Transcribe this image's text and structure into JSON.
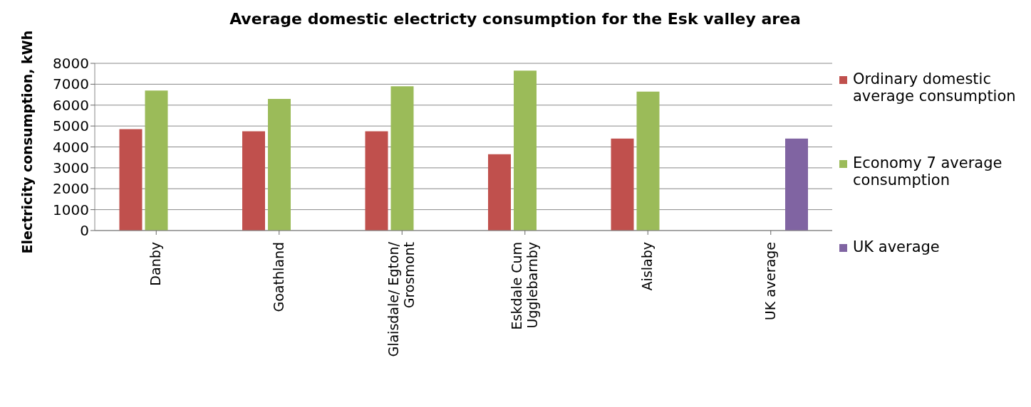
{
  "chart_data": {
    "type": "bar",
    "title": "Average domestic electricty consumption for the Esk valley area",
    "ylabel": "Electricity consumption, kWh",
    "categories": [
      "Danby",
      "Goathland",
      "Glaisdale/ Egton/ Grosmont",
      "Eskdale Cum Ugglebarnby",
      "Aislaby",
      "UK average"
    ],
    "series": [
      {
        "name": "Ordinary domestic average consumption",
        "color": "#c0504d",
        "values": [
          4850,
          4750,
          4750,
          3650,
          4400,
          null
        ]
      },
      {
        "name": "Economy 7 average consumption",
        "color": "#9bbb59",
        "values": [
          6700,
          6300,
          6900,
          7650,
          6650,
          null
        ]
      },
      {
        "name": "UK average",
        "color": "#8064a2",
        "values": [
          null,
          null,
          null,
          null,
          null,
          4400
        ]
      }
    ],
    "ylim": [
      0,
      8000
    ],
    "yticks": [
      0,
      1000,
      2000,
      3000,
      4000,
      5000,
      6000,
      7000,
      8000
    ],
    "grid": "y",
    "legend": "right"
  }
}
